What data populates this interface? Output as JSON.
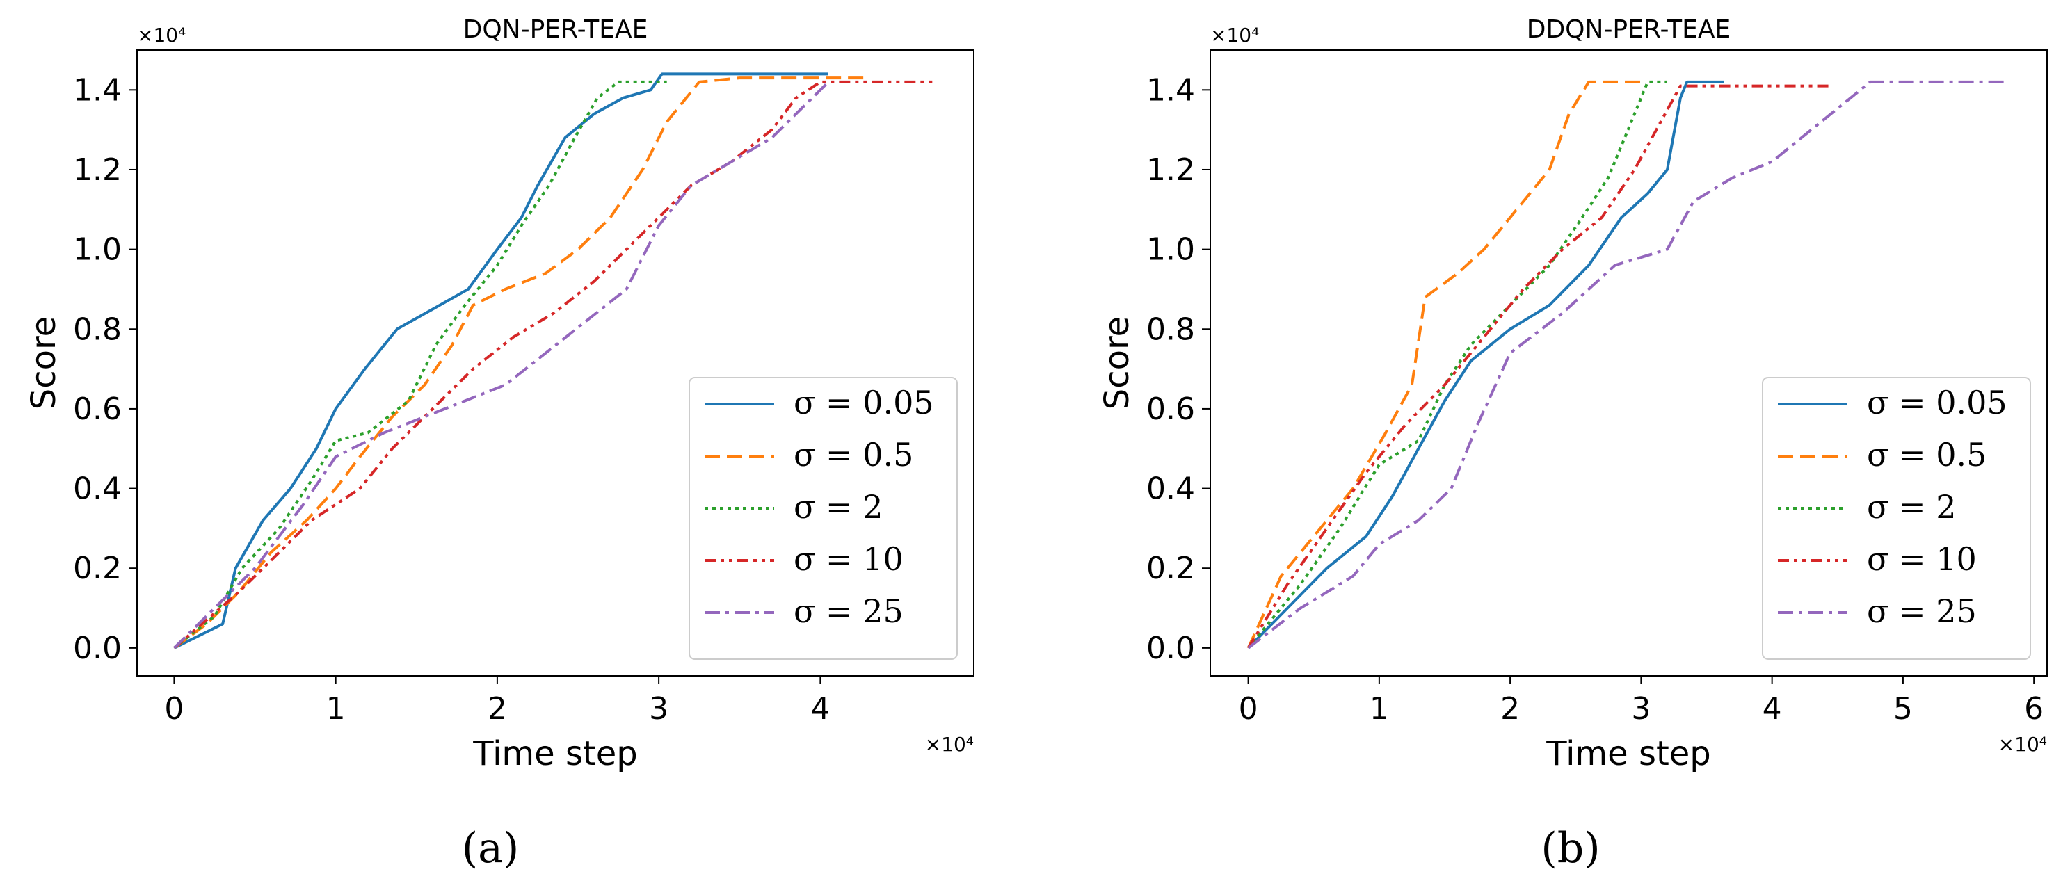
{
  "chart_data": [
    {
      "type": "line",
      "title": "DQN-PER-TEAE",
      "xlabel": "Time step",
      "ylabel": "Score",
      "x_multiplier": "×10⁴",
      "y_multiplier": "×10⁴",
      "xlim": [
        -0.23,
        4.95
      ],
      "ylim": [
        -0.07,
        1.5
      ],
      "xticks": [
        0,
        1,
        2,
        3,
        4
      ],
      "xtick_labels": [
        "0",
        "1",
        "2",
        "3",
        "4"
      ],
      "yticks": [
        0.0,
        0.2,
        0.4,
        0.6,
        0.8,
        1.0,
        1.2,
        1.4
      ],
      "ytick_labels": [
        "0.0",
        "0.2",
        "0.4",
        "0.6",
        "0.8",
        "1.0",
        "1.2",
        "1.4"
      ],
      "legend_position": "lower-right",
      "caption": "(a)",
      "series": [
        {
          "name": "σ = 0.05",
          "color": "#1f77b4",
          "dash": "solid",
          "x": [
            0,
            0.3,
            0.38,
            0.55,
            0.72,
            0.88,
            1.0,
            1.18,
            1.38,
            1.6,
            1.82,
            2.0,
            2.15,
            2.25,
            2.42,
            2.6,
            2.78,
            2.95,
            3.02,
            3.5,
            4.05
          ],
          "y": [
            0,
            0.06,
            0.2,
            0.32,
            0.4,
            0.5,
            0.6,
            0.7,
            0.8,
            0.85,
            0.9,
            1.0,
            1.08,
            1.16,
            1.28,
            1.34,
            1.38,
            1.4,
            1.44,
            1.44,
            1.44
          ]
        },
        {
          "name": "σ = 0.5",
          "color": "#ff7f0e",
          "dash": "dashed",
          "x": [
            0,
            0.2,
            0.4,
            0.6,
            0.82,
            1.0,
            1.15,
            1.35,
            1.55,
            1.72,
            1.85,
            2.05,
            2.3,
            2.5,
            2.7,
            2.9,
            3.05,
            3.25,
            3.5,
            4.3
          ],
          "y": [
            0,
            0.06,
            0.14,
            0.24,
            0.32,
            0.4,
            0.48,
            0.58,
            0.66,
            0.76,
            0.86,
            0.9,
            0.94,
            1.0,
            1.08,
            1.2,
            1.32,
            1.42,
            1.43,
            1.43
          ]
        },
        {
          "name": "σ = 2",
          "color": "#2ca02c",
          "dash": "dotted",
          "x": [
            0,
            0.25,
            0.42,
            0.65,
            0.85,
            1.0,
            1.2,
            1.45,
            1.62,
            1.8,
            2.0,
            2.15,
            2.32,
            2.48,
            2.62,
            2.75,
            2.9,
            3.05
          ],
          "y": [
            0,
            0.08,
            0.2,
            0.3,
            0.42,
            0.52,
            0.54,
            0.62,
            0.76,
            0.86,
            0.96,
            1.06,
            1.16,
            1.28,
            1.38,
            1.42,
            1.42,
            1.42
          ]
        },
        {
          "name": "σ = 10",
          "color": "#d62728",
          "dash": "dashdotdot",
          "x": [
            0,
            0.4,
            0.6,
            0.85,
            1.15,
            1.35,
            1.6,
            1.85,
            2.1,
            2.35,
            2.6,
            2.8,
            3.0,
            3.2,
            3.45,
            3.7,
            3.85,
            4.0,
            4.4,
            4.7
          ],
          "y": [
            0,
            0.14,
            0.22,
            0.32,
            0.4,
            0.5,
            0.6,
            0.7,
            0.78,
            0.84,
            0.92,
            1.0,
            1.08,
            1.16,
            1.22,
            1.3,
            1.38,
            1.42,
            1.42,
            1.42
          ]
        },
        {
          "name": "σ = 25",
          "color": "#9467bd",
          "dash": "dashdot",
          "x": [
            0,
            0.2,
            0.5,
            0.8,
            1.0,
            1.3,
            1.55,
            1.8,
            2.05,
            2.3,
            2.55,
            2.8,
            3.0,
            3.2,
            3.45,
            3.7,
            3.9,
            4.05
          ],
          "y": [
            0,
            0.08,
            0.2,
            0.36,
            0.48,
            0.54,
            0.58,
            0.62,
            0.66,
            0.74,
            0.82,
            0.9,
            1.06,
            1.16,
            1.22,
            1.28,
            1.36,
            1.42
          ]
        }
      ]
    },
    {
      "type": "line",
      "title": "DDQN-PER-TEAE",
      "xlabel": "Time step",
      "ylabel": "Score",
      "x_multiplier": "×10⁴",
      "y_multiplier": "×10⁴",
      "xlim": [
        -0.29,
        6.1
      ],
      "ylim": [
        -0.07,
        1.5
      ],
      "xticks": [
        0,
        1,
        2,
        3,
        4,
        5,
        6
      ],
      "xtick_labels": [
        "0",
        "1",
        "2",
        "3",
        "4",
        "5",
        "6"
      ],
      "yticks": [
        0.0,
        0.2,
        0.4,
        0.6,
        0.8,
        1.0,
        1.2,
        1.4
      ],
      "ytick_labels": [
        "0.0",
        "0.2",
        "0.4",
        "0.6",
        "0.8",
        "1.0",
        "1.2",
        "1.4"
      ],
      "legend_position": "lower-right",
      "caption": "(b)",
      "series": [
        {
          "name": "σ = 0.05",
          "color": "#1f77b4",
          "dash": "solid",
          "x": [
            0,
            0.3,
            0.6,
            0.9,
            1.1,
            1.3,
            1.5,
            1.7,
            2.0,
            2.3,
            2.6,
            2.85,
            3.05,
            3.2,
            3.3,
            3.35,
            3.63
          ],
          "y": [
            0,
            0.1,
            0.2,
            0.28,
            0.38,
            0.5,
            0.62,
            0.72,
            0.8,
            0.86,
            0.96,
            1.08,
            1.14,
            1.2,
            1.38,
            1.42,
            1.42
          ]
        },
        {
          "name": "σ = 0.5",
          "color": "#ff7f0e",
          "dash": "dashed",
          "x": [
            0,
            0.25,
            0.5,
            0.8,
            1.05,
            1.25,
            1.35,
            1.6,
            1.8,
            2.0,
            2.3,
            2.45,
            2.6,
            3.0
          ],
          "y": [
            0,
            0.18,
            0.28,
            0.4,
            0.54,
            0.66,
            0.88,
            0.94,
            1.0,
            1.08,
            1.2,
            1.34,
            1.42,
            1.42
          ]
        },
        {
          "name": "σ = 2",
          "color": "#2ca02c",
          "dash": "dotted",
          "x": [
            0,
            0.4,
            0.7,
            1.0,
            1.3,
            1.5,
            1.7,
            2.0,
            2.3,
            2.55,
            2.75,
            2.95,
            3.05,
            3.2
          ],
          "y": [
            0,
            0.16,
            0.3,
            0.46,
            0.52,
            0.66,
            0.76,
            0.86,
            0.96,
            1.08,
            1.18,
            1.34,
            1.42,
            1.42
          ]
        },
        {
          "name": "σ = 10",
          "color": "#d62728",
          "dash": "dashdotdot",
          "x": [
            0,
            0.3,
            0.6,
            0.9,
            1.2,
            1.5,
            1.8,
            2.1,
            2.4,
            2.7,
            2.95,
            3.15,
            3.3,
            3.6,
            4.45
          ],
          "y": [
            0,
            0.16,
            0.3,
            0.44,
            0.56,
            0.66,
            0.78,
            0.9,
            1.0,
            1.08,
            1.2,
            1.32,
            1.41,
            1.41,
            1.41
          ]
        },
        {
          "name": "σ = 25",
          "color": "#9467bd",
          "dash": "dashdot",
          "x": [
            0,
            0.4,
            0.8,
            1.0,
            1.3,
            1.55,
            1.75,
            2.0,
            2.4,
            2.8,
            3.2,
            3.4,
            3.7,
            4.0,
            4.3,
            4.6,
            4.75,
            5.0,
            5.8
          ],
          "y": [
            0,
            0.1,
            0.18,
            0.26,
            0.32,
            0.4,
            0.56,
            0.74,
            0.84,
            0.96,
            1.0,
            1.12,
            1.18,
            1.22,
            1.3,
            1.38,
            1.42,
            1.42,
            1.42
          ]
        }
      ]
    }
  ]
}
